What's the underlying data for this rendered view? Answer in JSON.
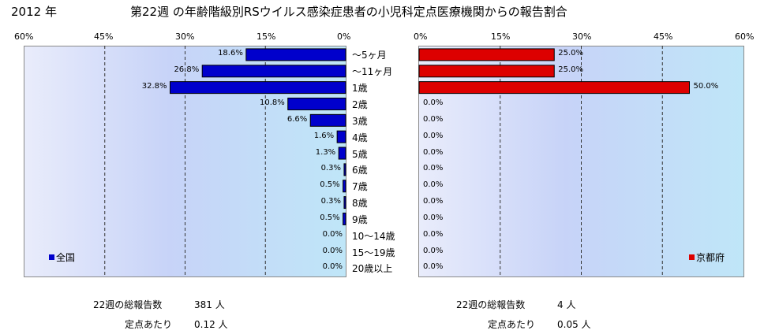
{
  "header": {
    "year": "2012 年",
    "title": "第22週 の年齢階級別RSウイルス感染症患者の小児科定点医療機関からの報告割合"
  },
  "chart_data": [
    {
      "type": "bar",
      "orientation": "horizontal",
      "direction": "right-to-left",
      "series": [
        {
          "name": "全国",
          "values": [
            18.6,
            26.8,
            32.8,
            10.8,
            6.6,
            1.6,
            1.3,
            0.3,
            0.5,
            0.3,
            0.5,
            0.0,
            0.0,
            0.0
          ]
        }
      ],
      "value_labels": [
        "18.6%",
        "26.8%",
        "32.8%",
        "10.8%",
        "6.6%",
        "1.6%",
        "1.3%",
        "0.3%",
        "0.5%",
        "0.3%",
        "0.5%",
        "0.0%",
        "0.0%",
        "0.0%"
      ],
      "xlim": [
        0,
        60
      ],
      "xticks": [
        "60%",
        "45%",
        "30%",
        "15%",
        "0%"
      ],
      "grid": true,
      "legend": "bottom-left",
      "color": "#0000cc"
    },
    {
      "type": "bar",
      "orientation": "horizontal",
      "direction": "left-to-right",
      "series": [
        {
          "name": "京都府",
          "values": [
            25.0,
            25.0,
            50.0,
            0.0,
            0.0,
            0.0,
            0.0,
            0.0,
            0.0,
            0.0,
            0.0,
            0.0,
            0.0,
            0.0
          ]
        }
      ],
      "value_labels": [
        "25.0%",
        "25.0%",
        "50.0%",
        "0.0%",
        "0.0%",
        "0.0%",
        "0.0%",
        "0.0%",
        "0.0%",
        "0.0%",
        "0.0%",
        "0.0%",
        "0.0%",
        "0.0%"
      ],
      "xlim": [
        0,
        60
      ],
      "xticks": [
        "0%",
        "15%",
        "30%",
        "45%",
        "60%"
      ],
      "grid": true,
      "legend": "bottom-right",
      "color": "#dd0000"
    }
  ],
  "categories": [
    "～5ヶ月",
    "～11ヶ月",
    "1歳",
    "2歳",
    "3歳",
    "4歳",
    "5歳",
    "6歳",
    "7歳",
    "8歳",
    "9歳",
    "10～14歳",
    "15～19歳",
    "20歳以上"
  ],
  "stats": {
    "national": {
      "total_label": "22週の総報告数",
      "total_value": "381 人",
      "per_label": "定点あたり",
      "per_value": "0.12 人"
    },
    "kyoto": {
      "total_label": "22週の総報告数",
      "total_value": "4 人",
      "per_label": "定点あたり",
      "per_value": "0.05 人"
    }
  }
}
